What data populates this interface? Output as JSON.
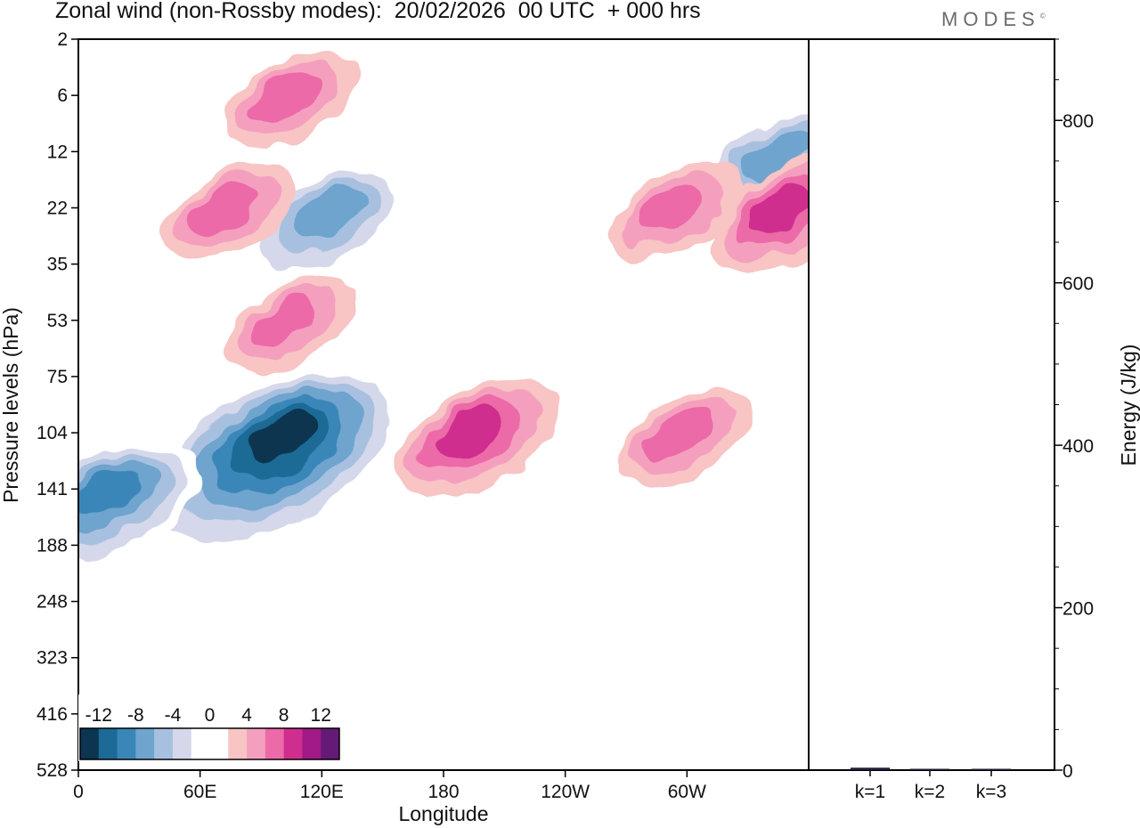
{
  "header": {
    "title": "Zonal wind (non-Rossby modes):  20/02/2026  00 UTC  + 000 hrs",
    "logo": "MODES",
    "logo_mark": "©"
  },
  "chart_data": [
    {
      "type": "heatmap",
      "title": "Zonal wind (non-Rossby modes):  20/02/2026  00 UTC  + 000 hrs",
      "xlabel": "Longitude",
      "ylabel": "Pressure levels (hPa)",
      "x_ticks": [
        "0",
        "60E",
        "120E",
        "180",
        "120W",
        "60W"
      ],
      "x_tick_degrees": [
        0,
        60,
        120,
        180,
        240,
        300
      ],
      "xlim": [
        0,
        360
      ],
      "y_ticks": [
        "2",
        "6",
        "12",
        "22",
        "35",
        "53",
        "75",
        "104",
        "141",
        "188",
        "248",
        "323",
        "416",
        "528"
      ],
      "colorbar": {
        "levels": [
          -12,
          -8,
          -4,
          0,
          4,
          8,
          12
        ],
        "level_labels": [
          "-12",
          "-8",
          "-4",
          "0",
          "4",
          "8",
          "12"
        ],
        "colors": [
          "#0b3550",
          "#1c6a96",
          "#3a86b8",
          "#6ea4ce",
          "#a8c0df",
          "#d5d8ea",
          "#ffffff",
          "#ffffff",
          "#f8c4c4",
          "#f59fbe",
          "#ec6aa7",
          "#cf2e8e",
          "#a11a86",
          "#651a78"
        ]
      },
      "features": [
        {
          "lon": 102,
          "level": "104",
          "value": -14
        },
        {
          "lon": 15,
          "level": "141",
          "value": -10
        },
        {
          "lon": 125,
          "level": "22",
          "value": -8
        },
        {
          "lon": 345,
          "level": "12",
          "value": -9
        },
        {
          "lon": 190,
          "level": "104",
          "value": 8
        },
        {
          "lon": 295,
          "level": "104",
          "value": 7
        },
        {
          "lon": 345,
          "level": "22",
          "value": 8
        },
        {
          "lon": 290,
          "level": "22",
          "value": 7
        },
        {
          "lon": 70,
          "level": "22",
          "value": 7
        },
        {
          "lon": 100,
          "level": "53",
          "value": 6
        },
        {
          "lon": 100,
          "level": "6",
          "value": 6
        }
      ]
    },
    {
      "type": "bar",
      "categories": [
        "k=1",
        "k=2",
        "k=3"
      ],
      "values": [
        3,
        1,
        1
      ],
      "ylabel": "Energy (J/kg)",
      "ylim": [
        0,
        900
      ],
      "y_ticks": [
        0,
        200,
        400,
        600,
        800
      ],
      "y_tick_labels": [
        "0",
        "200",
        "400",
        "600",
        "800"
      ]
    }
  ]
}
